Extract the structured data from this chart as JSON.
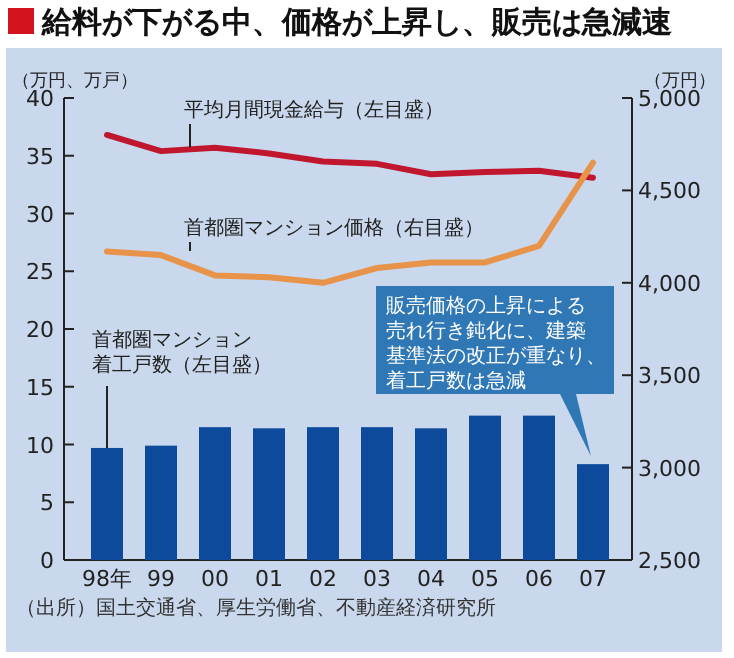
{
  "chart_data": {
    "type": "bar",
    "title": "給料が下がる中、価格が上昇し、販売は急減速",
    "ylabel": "（万円、万戸）",
    "y2label": "（万円）",
    "categories": [
      "98年",
      "99",
      "00",
      "01",
      "02",
      "03",
      "04",
      "05",
      "06",
      "07"
    ],
    "series": [
      {
        "name": "首都圏マンション着工戸数（左目盛）",
        "color": "#0d4a9c",
        "values": [
          9.7,
          9.9,
          11.5,
          11.4,
          11.5,
          11.5,
          11.4,
          12.5,
          12.5,
          8.3
        ]
      },
      {
        "name": "平均月間現金給与（左目盛）",
        "type": "line",
        "color": "#c0172f",
        "values": [
          36.8,
          35.4,
          35.7,
          35.2,
          34.5,
          34.3,
          33.4,
          33.6,
          33.7,
          33.1
        ]
      },
      {
        "name": "首都圏マンション価格（右目盛）",
        "type": "line",
        "axis": "y2",
        "color": "#e8934a",
        "values": [
          4170,
          4150,
          4040,
          4030,
          4000,
          4080,
          4110,
          4110,
          4200,
          4650
        ]
      }
    ],
    "ylim": [
      0,
      40
    ],
    "yticks": [
      0,
      5,
      10,
      15,
      20,
      25,
      30,
      35,
      40
    ],
    "y2lim": [
      2500,
      5000
    ],
    "y2ticks": [
      {
        "value": 2500,
        "label": "2,500"
      },
      {
        "value": 3000,
        "label": "3,000"
      },
      {
        "value": 3500,
        "label": "3,500"
      },
      {
        "value": 4000,
        "label": "4,000"
      },
      {
        "value": 4500,
        "label": "4,500"
      },
      {
        "value": 5000,
        "label": "5,000"
      }
    ],
    "grid": false,
    "legend": false,
    "annotations": [
      "販売価格の上昇による売れ行き鈍化に、建築基準法の改正が重なり、着工戸数は急減",
      "（出所）国土交通省、厚生労働省、不動産経済研究所"
    ]
  }
}
